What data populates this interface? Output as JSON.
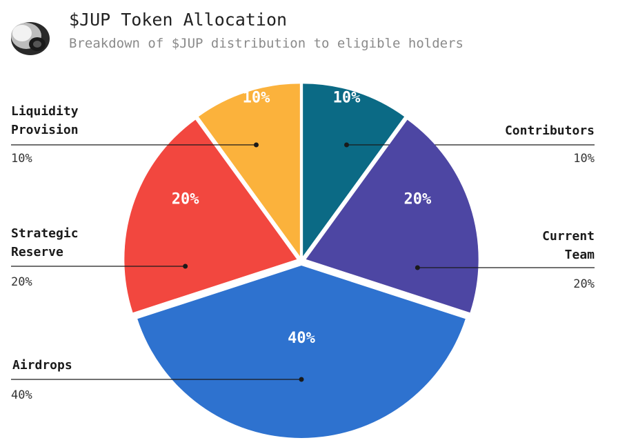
{
  "header": {
    "title": "$JUP Token Allocation",
    "subtitle": "Breakdown of $JUP distribution to eligible holders",
    "logo_icon": "shell-logo-icon"
  },
  "chart_data": {
    "type": "pie",
    "title": "$JUP Token Allocation",
    "subtitle": "Breakdown of $JUP distribution to eligible holders",
    "slices": [
      {
        "id": "contributors",
        "label": "Contributors",
        "label_lines": [
          "Contributors"
        ],
        "value": 10,
        "value_label": "10%",
        "color": "#0b6a85"
      },
      {
        "id": "current-team",
        "label": "Current Team",
        "label_lines": [
          "Current",
          "Team"
        ],
        "value": 20,
        "value_label": "20%",
        "color": "#4d46a3"
      },
      {
        "id": "airdrops",
        "label": "Airdrops",
        "label_lines": [
          "Airdrops"
        ],
        "value": 40,
        "value_label": "40%",
        "color": "#2e72cf"
      },
      {
        "id": "strategic-reserve",
        "label": "Strategic Reserve",
        "label_lines": [
          "Strategic",
          "Reserve"
        ],
        "value": 20,
        "value_label": "20%",
        "color": "#f2473f"
      },
      {
        "id": "liquidity-provision",
        "label": "Liquidity Provision",
        "label_lines": [
          "Liquidity",
          "Provision"
        ],
        "value": 10,
        "value_label": "10%",
        "color": "#fbb23c"
      }
    ]
  }
}
